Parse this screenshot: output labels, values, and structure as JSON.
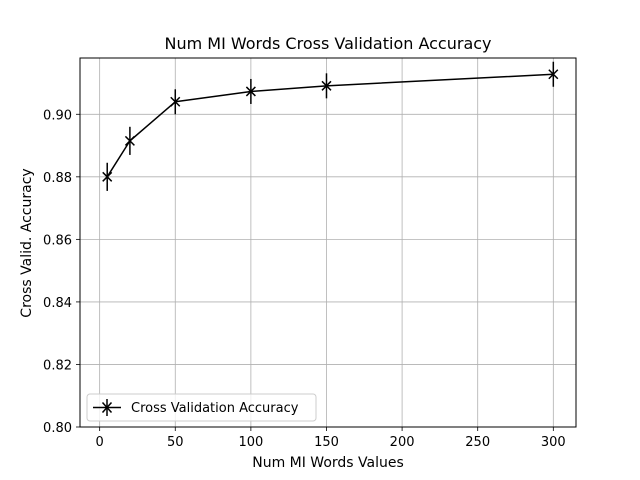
{
  "chart_data": {
    "type": "line",
    "title": "Num MI Words Cross Validation Accuracy",
    "xlabel": "Num MI Words Values",
    "ylabel": "Cross Valid. Accuracy",
    "xlim": [
      -13,
      315
    ],
    "ylim": [
      0.8,
      0.918
    ],
    "xticks": [
      0,
      50,
      100,
      150,
      200,
      250,
      300
    ],
    "yticks": [
      0.8,
      0.82,
      0.84,
      0.86,
      0.88,
      0.9
    ],
    "xtick_labels": [
      "0",
      "50",
      "100",
      "150",
      "200",
      "250",
      "300"
    ],
    "ytick_labels": [
      "0.80",
      "0.82",
      "0.84",
      "0.86",
      "0.88",
      "0.90"
    ],
    "grid": true,
    "legend_position": "lower-left",
    "colors": {
      "line": "#000000",
      "grid": "#b0b0b0"
    },
    "series": [
      {
        "name": "Cross Validation Accuracy",
        "marker": "x",
        "x": [
          5,
          20,
          50,
          100,
          150,
          300
        ],
        "y": [
          0.88,
          0.8915,
          0.904,
          0.9073,
          0.9091,
          0.9128
        ],
        "error": [
          0.0045,
          0.0045,
          0.004,
          0.004,
          0.004,
          0.004
        ]
      }
    ]
  }
}
